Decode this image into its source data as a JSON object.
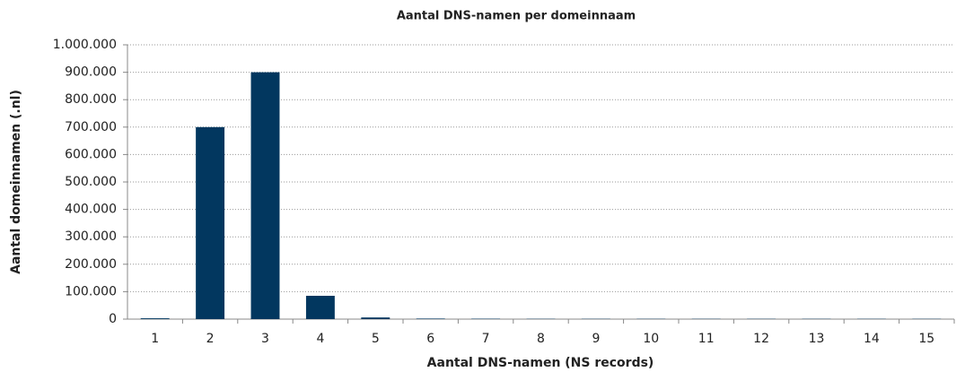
{
  "chart_data": {
    "type": "bar",
    "title": "Aantal DNS-namen per domeinnaam",
    "x_label": "Aantal DNS-namen (NS records)",
    "y_label": "Aantal domeinnamen (.nl)",
    "categories": [
      1,
      2,
      3,
      4,
      5,
      6,
      7,
      8,
      9,
      10,
      11,
      12,
      13,
      14,
      15
    ],
    "values": [
      3000,
      700000,
      900000,
      85000,
      6000,
      2000,
      1500,
      1000,
      1000,
      1000,
      1000,
      1000,
      1000,
      1000,
      1000
    ],
    "color": "#02375f",
    "ylim": [
      0,
      1000000
    ],
    "yticks": [
      0,
      {
        "value": 100000,
        "label": "100.000"
      },
      {
        "value": 200000,
        "label": "200.000"
      },
      {
        "value": 300000,
        "label": "300.000"
      },
      {
        "value": 400000,
        "label": "400.000"
      },
      {
        "value": 500000,
        "label": "500.000"
      },
      {
        "value": 600000,
        "label": "600.000"
      },
      {
        "value": 700000,
        "label": "700.000"
      },
      {
        "value": 800000,
        "label": "800.000"
      },
      {
        "value": 900000,
        "label": "900.000"
      },
      {
        "value": 1000000,
        "label": "1.000.000"
      }
    ],
    "grid": true
  }
}
